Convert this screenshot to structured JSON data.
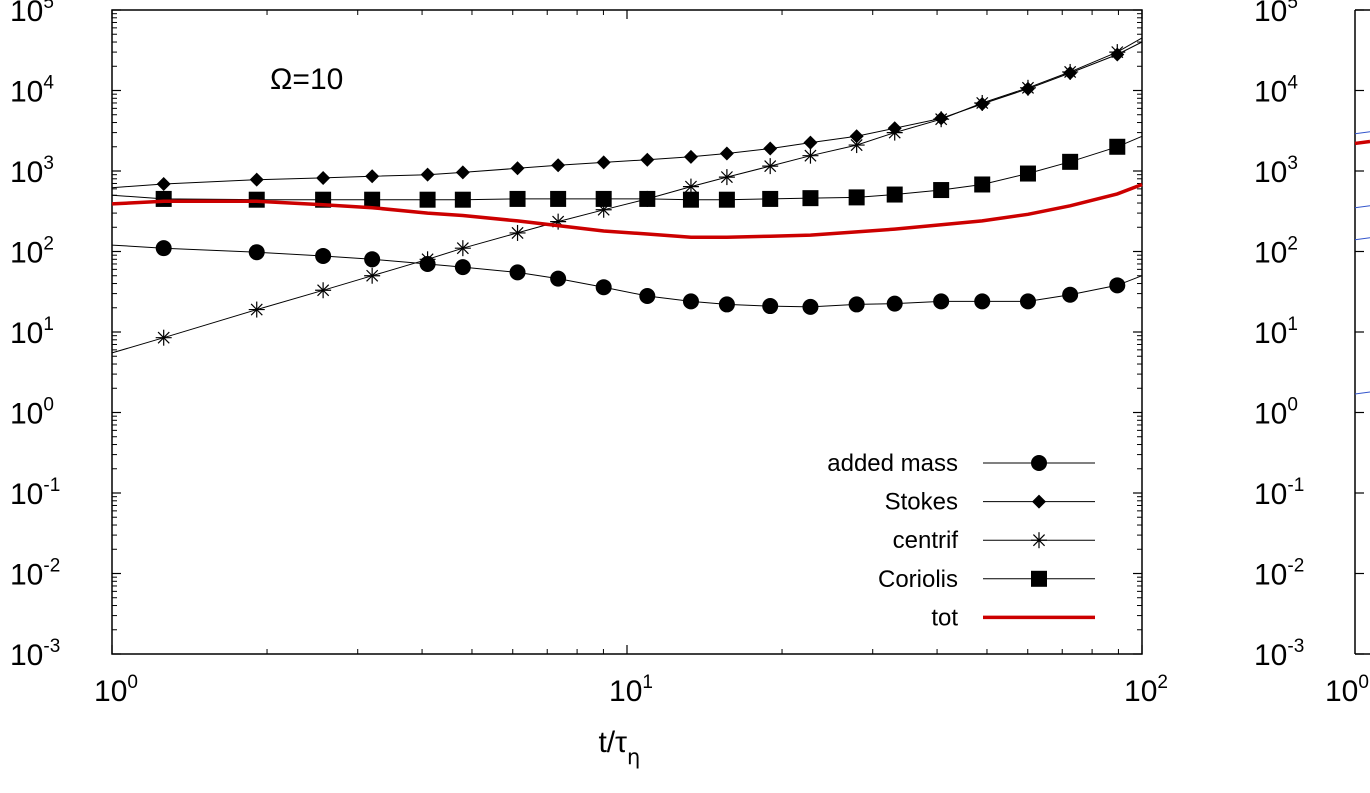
{
  "chart_data": [
    {
      "type": "line",
      "annotation": "Ω=10",
      "xlabel": "t/τ",
      "xlabel_sub": "η",
      "ylabel": "",
      "x_scale": "log",
      "y_scale": "log",
      "xlim": [
        1,
        100
      ],
      "ylim": [
        0.001,
        100000
      ],
      "x_ticks": [
        {
          "mant": "10",
          "exp": "0",
          "value": 1
        },
        {
          "mant": "10",
          "exp": "1",
          "value": 10
        },
        {
          "mant": "10",
          "exp": "2",
          "value": 100
        }
      ],
      "y_ticks": [
        {
          "mant": "10",
          "exp": "5",
          "value": 100000
        },
        {
          "mant": "10",
          "exp": "4",
          "value": 10000
        },
        {
          "mant": "10",
          "exp": "3",
          "value": 1000
        },
        {
          "mant": "10",
          "exp": "2",
          "value": 100
        },
        {
          "mant": "10",
          "exp": "1",
          "value": 10
        },
        {
          "mant": "10",
          "exp": "0",
          "value": 1
        },
        {
          "mant": "10",
          "exp": "-1",
          "value": 0.1
        },
        {
          "mant": "10",
          "exp": "-2",
          "value": 0.01
        },
        {
          "mant": "10",
          "exp": "-3",
          "value": 0.001
        }
      ],
      "legend_position": "bottom-right",
      "series": [
        {
          "name": "added mass",
          "marker": "circle",
          "color": "#000000",
          "x": [
            1.0,
            1.26,
            1.91,
            2.57,
            3.2,
            4.1,
            4.8,
            6.13,
            7.35,
            9.01,
            10.95,
            13.31,
            15.63,
            18.97,
            22.71,
            27.92,
            33.1,
            40.74,
            48.95,
            60.06,
            72.52,
            89.54,
            100
          ],
          "y": [
            120,
            110,
            98,
            88,
            80,
            70,
            64,
            55,
            46,
            36,
            28,
            24,
            22,
            21,
            20.5,
            22,
            22.5,
            24,
            24,
            24,
            29,
            38,
            50
          ]
        },
        {
          "name": "Stokes",
          "marker": "diamond",
          "color": "#000000",
          "x": [
            1.0,
            1.26,
            1.91,
            2.57,
            3.2,
            4.1,
            4.8,
            6.13,
            7.35,
            9.01,
            10.95,
            13.31,
            15.63,
            18.97,
            22.71,
            27.92,
            33.1,
            40.74,
            48.95,
            60.06,
            72.52,
            89.54,
            100
          ],
          "y": [
            620,
            690,
            780,
            820,
            860,
            900,
            960,
            1080,
            1180,
            1280,
            1380,
            1500,
            1650,
            1900,
            2250,
            2700,
            3400,
            4500,
            6800,
            10500,
            16500,
            28000,
            40000
          ]
        },
        {
          "name": "centrif",
          "marker": "asterisk",
          "color": "#000000",
          "x": [
            1.0,
            1.26,
            1.91,
            2.57,
            3.2,
            4.1,
            4.8,
            6.13,
            7.35,
            9.01,
            10.95,
            13.31,
            15.63,
            18.97,
            22.71,
            27.92,
            33.1,
            40.74,
            48.95,
            60.06,
            72.52,
            89.54,
            100
          ],
          "y": [
            5.5,
            8.5,
            19,
            33,
            50,
            80,
            110,
            170,
            235,
            330,
            450,
            640,
            840,
            1150,
            1550,
            2100,
            3000,
            4400,
            7000,
            10800,
            17000,
            30000,
            45000
          ]
        },
        {
          "name": "Coriolis",
          "marker": "square",
          "color": "#000000",
          "x": [
            1.0,
            1.26,
            1.91,
            2.57,
            3.2,
            4.1,
            4.8,
            6.13,
            7.35,
            9.01,
            10.95,
            13.31,
            15.63,
            18.97,
            22.71,
            27.92,
            33.1,
            40.74,
            48.95,
            60.06,
            72.52,
            89.54,
            100
          ],
          "y": [
            500,
            450,
            440,
            440,
            440,
            440,
            440,
            450,
            450,
            450,
            450,
            440,
            440,
            450,
            460,
            470,
            510,
            580,
            680,
            930,
            1300,
            2000,
            2700
          ]
        },
        {
          "name": "tot",
          "marker": "none",
          "color": "#cc0000",
          "x": [
            1.0,
            1.26,
            1.91,
            2.57,
            3.2,
            4.1,
            4.8,
            6.13,
            7.35,
            9.01,
            10.95,
            13.31,
            15.63,
            18.97,
            22.71,
            27.92,
            33.1,
            40.74,
            48.95,
            60.06,
            72.52,
            89.54,
            100
          ],
          "y": [
            390,
            420,
            420,
            380,
            350,
            300,
            280,
            240,
            210,
            180,
            165,
            150,
            150,
            155,
            160,
            175,
            190,
            215,
            240,
            290,
            370,
            520,
            680
          ]
        }
      ]
    },
    {
      "type": "line",
      "partial": "cut off at right edge",
      "x_scale": "log",
      "y_scale": "log",
      "ylim": [
        0.001,
        100000
      ],
      "x_tick_first": {
        "mant": "10",
        "exp": "0"
      },
      "y_ticks": [
        {
          "mant": "10",
          "exp": "5"
        },
        {
          "mant": "10",
          "exp": "4"
        },
        {
          "mant": "10",
          "exp": "3"
        },
        {
          "mant": "10",
          "exp": "2"
        },
        {
          "mant": "10",
          "exp": "1"
        },
        {
          "mant": "10",
          "exp": "0"
        },
        {
          "mant": "10",
          "exp": "-1"
        },
        {
          "mant": "10",
          "exp": "-2"
        },
        {
          "mant": "10",
          "exp": "-3"
        }
      ],
      "series": [
        {
          "color": "#cc0000",
          "y_start": 2200
        },
        {
          "color": "#3355cc",
          "y_start": 2900
        },
        {
          "color": "#3355cc",
          "y_start": 350
        },
        {
          "color": "#3355cc",
          "y_start": 140
        },
        {
          "color": "#3355cc",
          "y_start": 1.7
        }
      ]
    }
  ]
}
